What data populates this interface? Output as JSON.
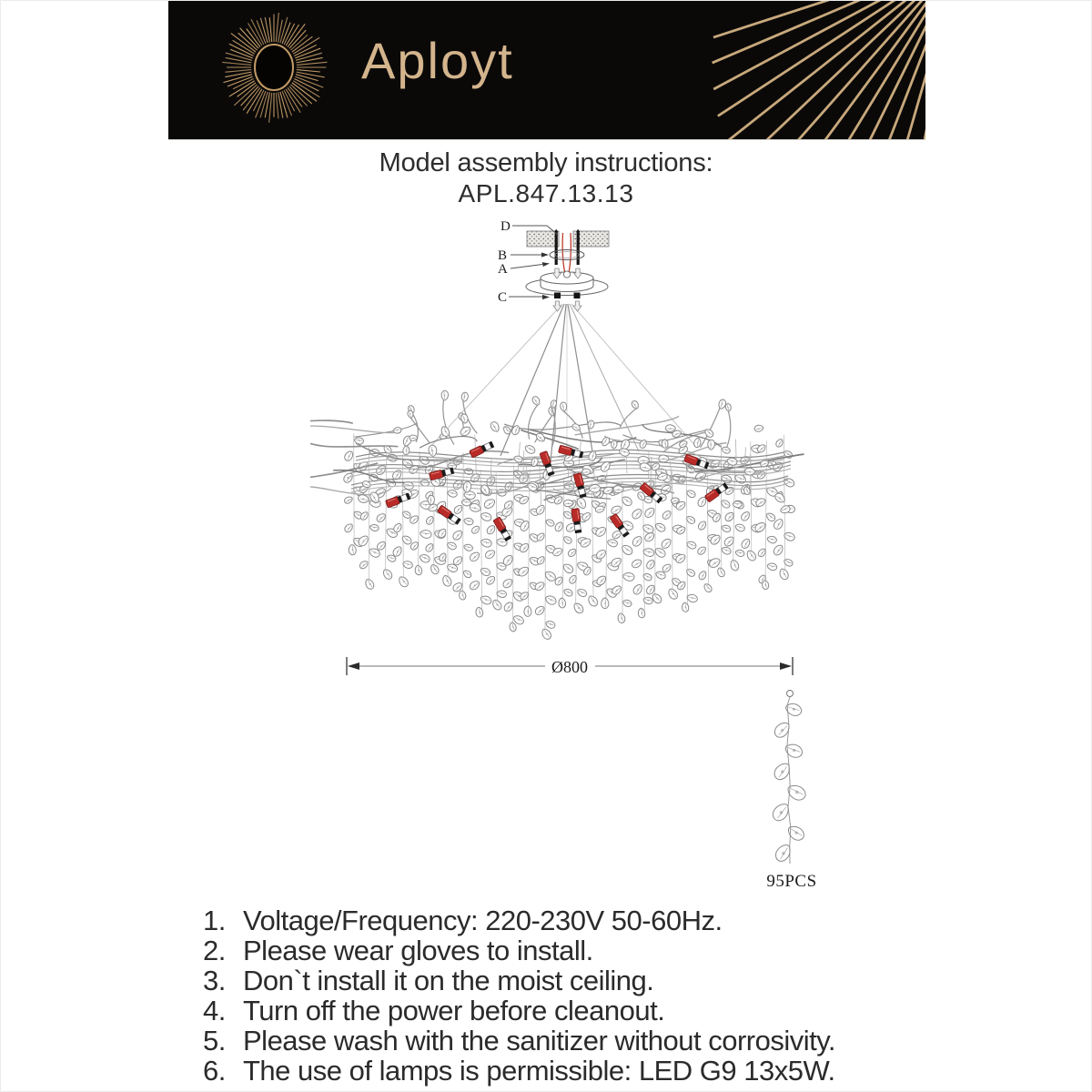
{
  "brand": {
    "name": "Aployt",
    "banner_bg": "#0b0908",
    "accent_gold": "#c9a26e"
  },
  "title": {
    "line1": "Model assembly instructions:",
    "line2": "APL.847.13.13"
  },
  "diagram": {
    "part_labels": {
      "d": "D",
      "b": "B",
      "a": "A",
      "c": "C"
    },
    "dimension_label": "Ø800",
    "strand_count_label": "95PCS",
    "lamp_count": 13,
    "socket_color": "#b92b28",
    "wire_color": "#c0392b",
    "line_color": "#8f8f8f"
  },
  "instructions": {
    "items": [
      {
        "num": "1.",
        "text": "Voltage/Frequency: 220-230V 50-60Hz."
      },
      {
        "num": "2.",
        "text": "Please wear gloves to install."
      },
      {
        "num": "3.",
        "text": "Don`t install it on the moist ceiling."
      },
      {
        "num": "4.",
        "text": "Turn off the power before cleanout."
      },
      {
        "num": "5.",
        "text": "Please wash with the sanitizer without corrosivity."
      },
      {
        "num": "6.",
        "text": "The use of lamps is permissible: LED G9 13x5W."
      }
    ]
  }
}
